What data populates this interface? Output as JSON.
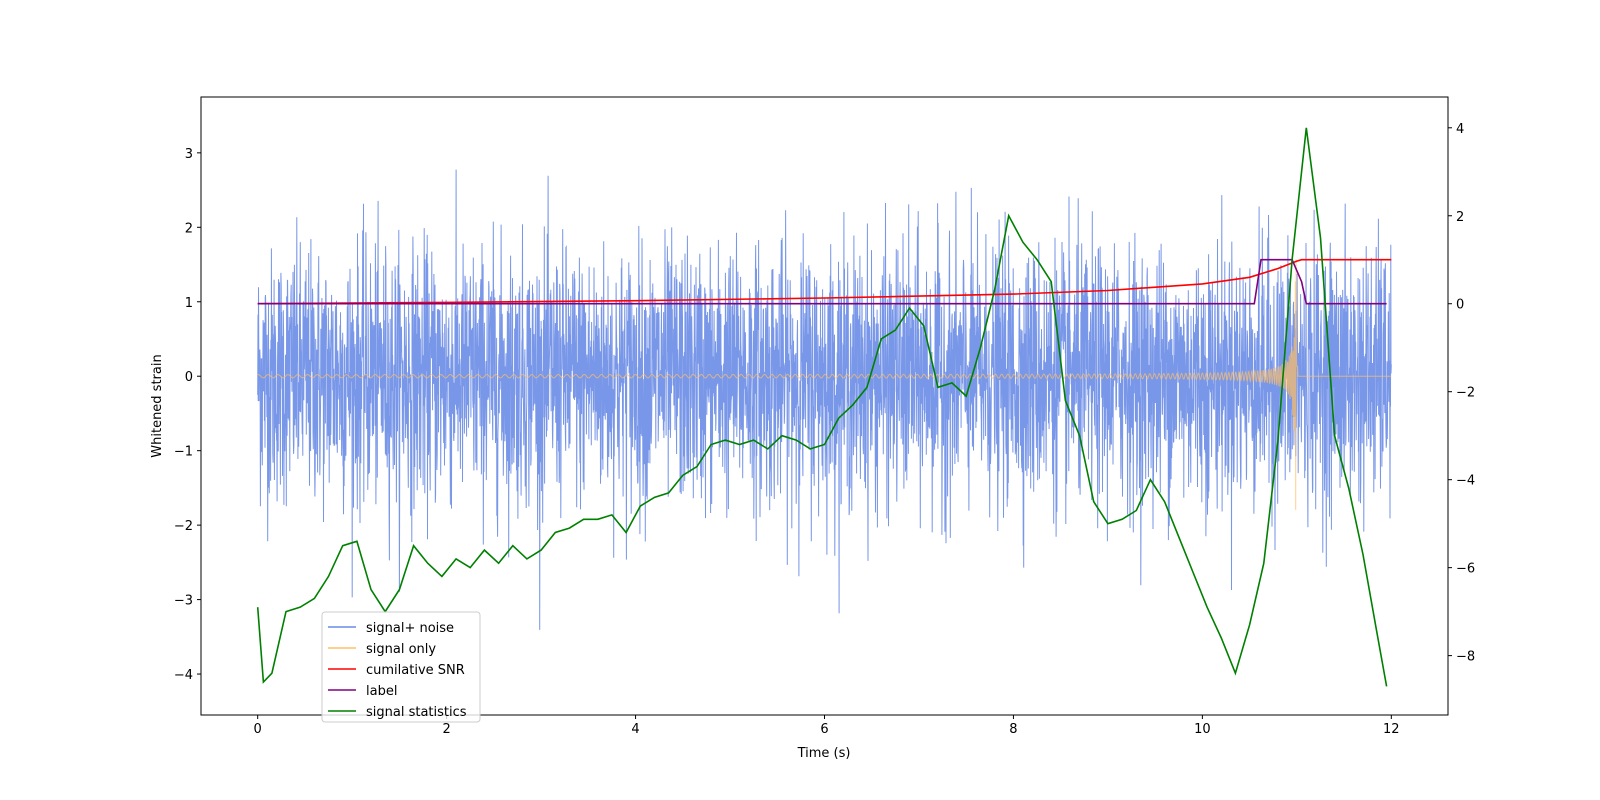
{
  "chart_data": {
    "type": "line",
    "title": "",
    "xlabel": "Time (s)",
    "ylabel": "Whitened strain",
    "y2label": "",
    "xlim": [
      -0.6,
      12.6
    ],
    "ylim": [
      -4.55,
      3.75
    ],
    "y2lim": [
      -9.35,
      4.7
    ],
    "xticks": [
      0,
      2,
      4,
      6,
      8,
      10,
      12
    ],
    "yticks": [
      -4,
      -3,
      -2,
      -1,
      0,
      1,
      2,
      3
    ],
    "y2ticks": [
      -8,
      -6,
      -4,
      -2,
      0,
      2,
      4
    ],
    "grid": false,
    "legend_position": "lower-left",
    "legend": [
      {
        "label": "signal+ noise",
        "color": "#6a8ce6"
      },
      {
        "label": "signal only",
        "color": "#ffbf66"
      },
      {
        "label": "cumilative SNR",
        "color": "#ff0000"
      },
      {
        "label": "label",
        "color": "#800080"
      },
      {
        "label": "signal statistics",
        "color": "#008000"
      }
    ],
    "series": [
      {
        "name": "signal+ noise",
        "axis": "left",
        "color": "#6a8ce6",
        "description_range": [
          -4.15,
          3.35
        ],
        "x_range": [
          0,
          12
        ],
        "noise_sigma": 0.85
      },
      {
        "name": "signal only",
        "axis": "left",
        "color": "#ffbf66",
        "x_range": [
          0,
          12
        ],
        "merger_time": 11.0,
        "peak_amplitude": 1.9,
        "start_amplitude": 0.02
      },
      {
        "name": "cumilative SNR",
        "axis": "right",
        "color": "#ff0000",
        "x": [
          0,
          2,
          4,
          6,
          8,
          9,
          10,
          10.5,
          10.8,
          11.0,
          11.05,
          12
        ],
        "y": [
          0.0,
          0.03,
          0.07,
          0.13,
          0.22,
          0.3,
          0.45,
          0.6,
          0.8,
          0.97,
          1.0,
          1.0
        ]
      },
      {
        "name": "label",
        "axis": "right",
        "color": "#800080",
        "x": [
          0,
          10.55,
          10.62,
          10.95,
          11.05,
          11.1,
          11.95
        ],
        "y": [
          0,
          0,
          1,
          1,
          0.5,
          0,
          0
        ]
      },
      {
        "name": "signal statistics",
        "axis": "right",
        "color": "#008000",
        "x": [
          0,
          0.06,
          0.15,
          0.3,
          0.45,
          0.6,
          0.75,
          0.9,
          1.05,
          1.2,
          1.35,
          1.5,
          1.65,
          1.8,
          1.95,
          2.1,
          2.25,
          2.4,
          2.55,
          2.7,
          2.85,
          3.0,
          3.15,
          3.3,
          3.45,
          3.6,
          3.75,
          3.9,
          4.05,
          4.2,
          4.35,
          4.5,
          4.65,
          4.8,
          4.95,
          5.1,
          5.25,
          5.4,
          5.55,
          5.7,
          5.85,
          6.0,
          6.15,
          6.3,
          6.45,
          6.6,
          6.75,
          6.9,
          7.05,
          7.2,
          7.35,
          7.5,
          7.65,
          7.8,
          7.95,
          8.1,
          8.25,
          8.4,
          8.55,
          8.7,
          8.85,
          9.0,
          9.15,
          9.3,
          9.45,
          9.6,
          9.75,
          9.9,
          10.05,
          10.2,
          10.35,
          10.5,
          10.65,
          10.8,
          10.95,
          11.1,
          11.25,
          11.4,
          11.55,
          11.7,
          11.85,
          11.95
        ],
        "y": [
          -6.9,
          -8.6,
          -8.4,
          -7.0,
          -6.9,
          -6.7,
          -6.2,
          -5.5,
          -5.4,
          -6.5,
          -7.0,
          -6.5,
          -5.5,
          -5.9,
          -6.2,
          -5.8,
          -6.0,
          -5.6,
          -5.9,
          -5.5,
          -5.8,
          -5.6,
          -5.2,
          -5.1,
          -4.9,
          -4.9,
          -4.8,
          -5.2,
          -4.6,
          -4.4,
          -4.3,
          -3.9,
          -3.7,
          -3.2,
          -3.1,
          -3.2,
          -3.1,
          -3.3,
          -3.0,
          -3.1,
          -3.3,
          -3.2,
          -2.6,
          -2.3,
          -1.9,
          -0.8,
          -0.6,
          -0.1,
          -0.5,
          -1.9,
          -1.8,
          -2.1,
          -1.0,
          0.3,
          2.0,
          1.4,
          1.0,
          0.5,
          -2.2,
          -3.0,
          -4.5,
          -5.0,
          -4.9,
          -4.7,
          -4.0,
          -4.5,
          -5.3,
          -6.1,
          -6.9,
          -7.6,
          -8.4,
          -7.3,
          -5.9,
          -3.1,
          1.0,
          4.0,
          1.5,
          -3.0,
          -4.2,
          -5.7,
          -7.5,
          -8.7
        ]
      }
    ]
  }
}
